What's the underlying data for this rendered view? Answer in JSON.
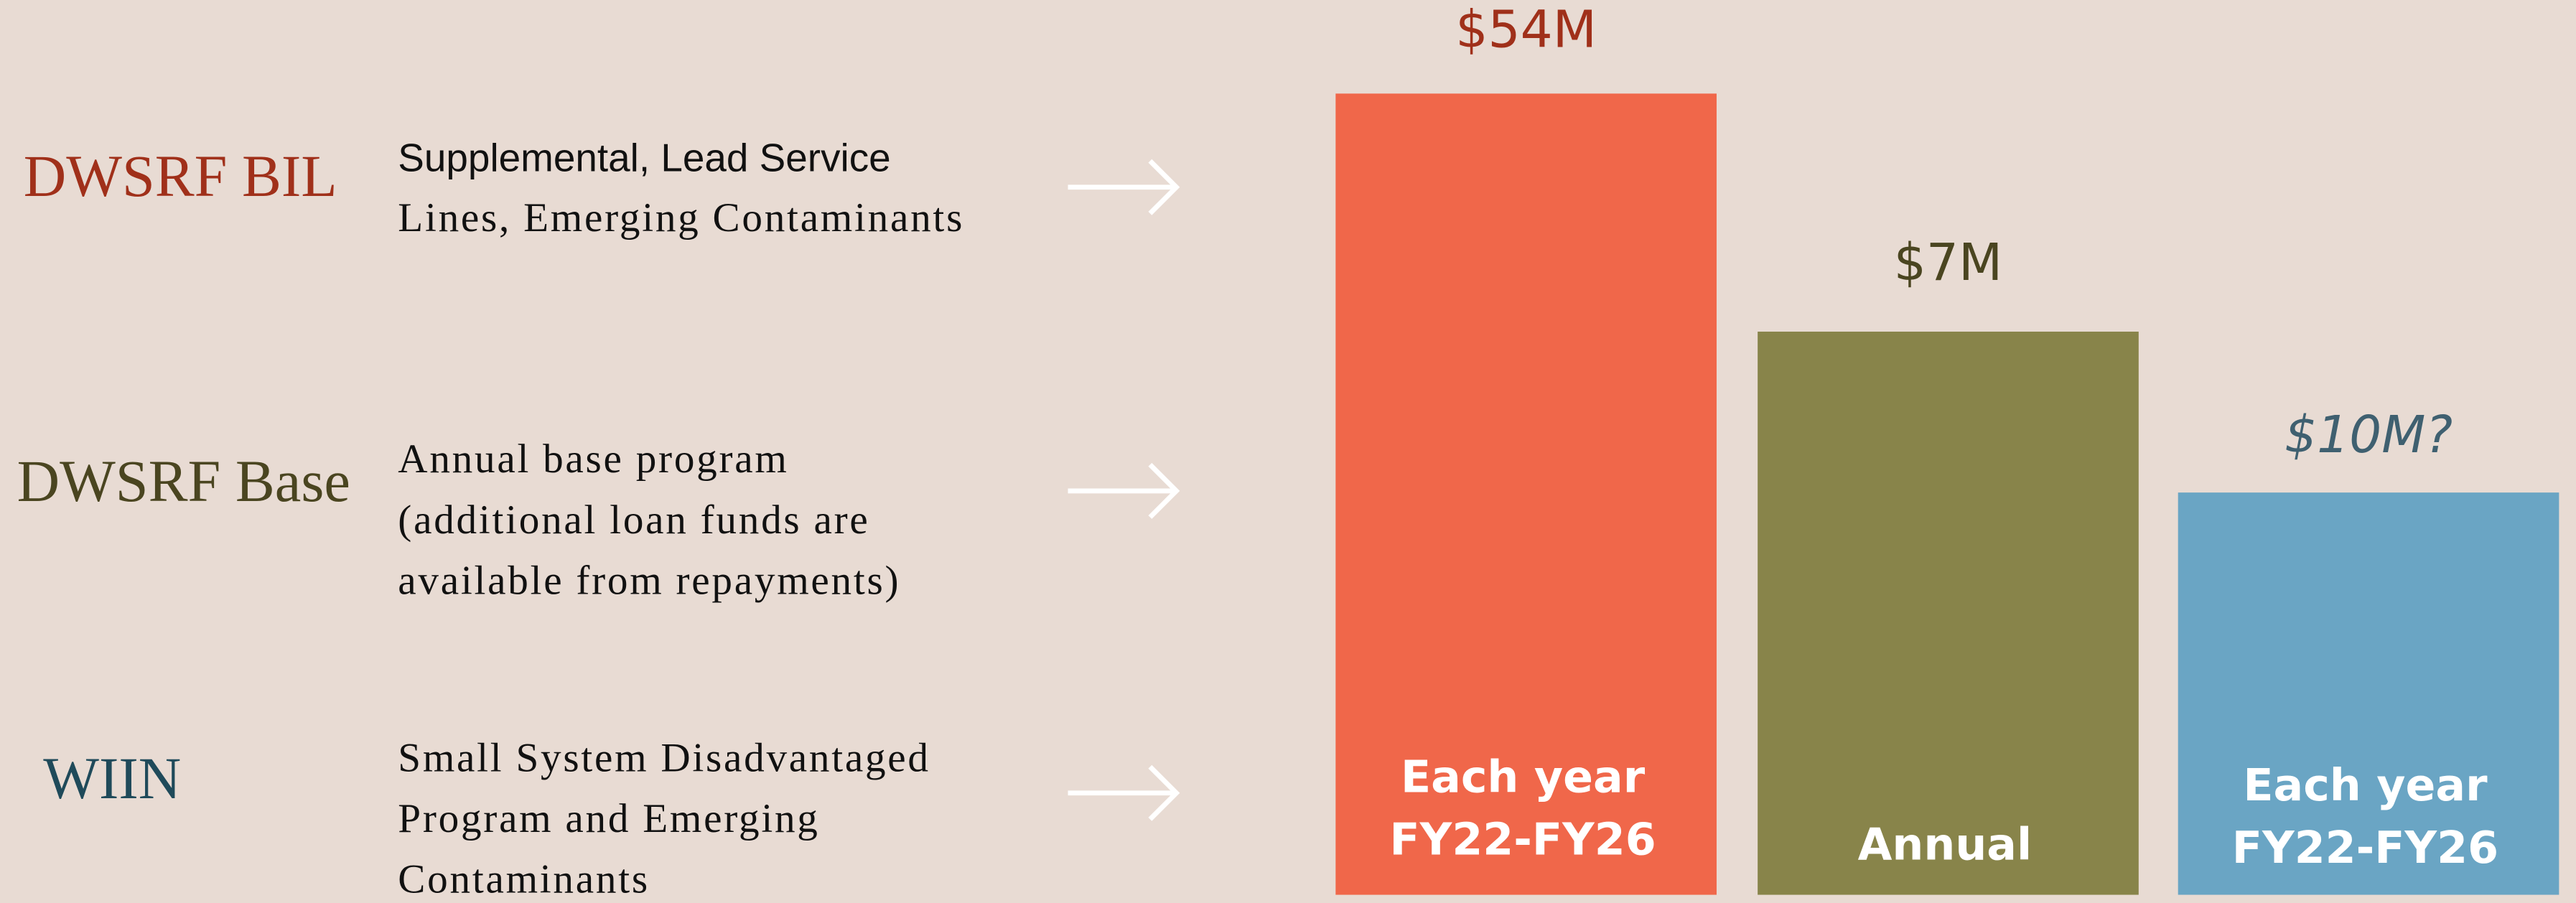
{
  "rows": [
    {
      "name": "DWSRF BIL",
      "description": [
        "Supplemental, Lead Service",
        "Lines, Emerging Contaminants"
      ],
      "amount": "$54M",
      "caption": [
        "Each year",
        "FY22-FY26"
      ]
    },
    {
      "name": "DWSRF Base",
      "description": [
        "Annual base program",
        "(additional loan funds are",
        "available from repayments)"
      ],
      "amount": "$7M",
      "caption": [
        "Annual"
      ]
    },
    {
      "name": "WIIN",
      "description": [
        "Small System Disadvantaged",
        "Program and Emerging",
        "Contaminants"
      ],
      "amount": "$10M?",
      "caption": [
        "Each year",
        "FY22-FY26"
      ]
    }
  ]
}
